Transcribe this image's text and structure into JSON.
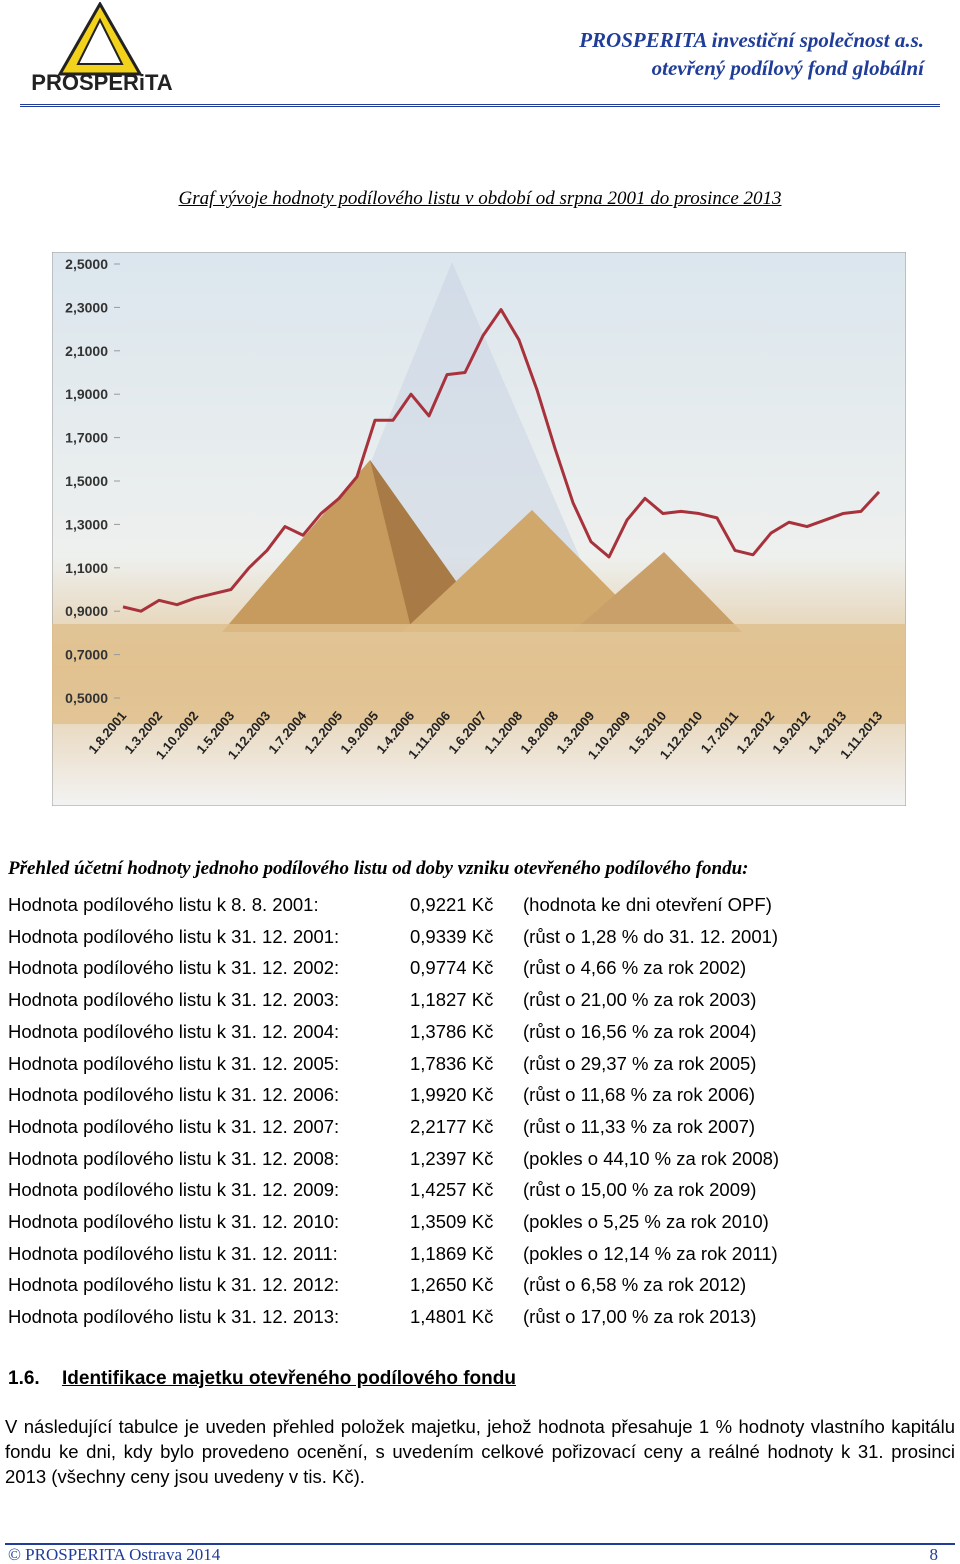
{
  "header": {
    "logo": "PROSPERiTA",
    "company": "PROSPERITA investiční společnost a.s.",
    "fund": "otevřený podílový fond globální"
  },
  "chart_caption": "Graf vývoje hodnoty podílového listu v období od srpna 2001 do prosince 2013",
  "chart_data": {
    "type": "line",
    "categories": [
      "1.8.2001",
      null,
      "1.3.2002",
      null,
      "1.10.2002",
      null,
      "1.5.2003",
      null,
      "1.12.2003",
      null,
      "1.7.2004",
      null,
      "1.2.2005",
      null,
      "1.9.2005",
      null,
      "1.4.2006",
      null,
      "1.11.2006",
      null,
      "1.6.2007",
      null,
      "1.1.2008",
      null,
      "1.8.2008",
      null,
      "1.3.2009",
      null,
      "1.10.2009",
      null,
      "1.5.2010",
      null,
      "1.12.2010",
      null,
      "1.7.2011",
      null,
      "1.2.2012",
      null,
      "1.9.2012",
      null,
      "1.4.2013",
      null,
      "1.11.2013"
    ],
    "series": [
      {
        "color": "#a8323c",
        "values": [
          0.92,
          0.9,
          0.95,
          0.93,
          0.96,
          0.98,
          1.0,
          1.1,
          1.18,
          1.29,
          1.25,
          1.35,
          1.42,
          1.52,
          1.78,
          1.78,
          1.9,
          1.8,
          1.99,
          2.0,
          2.17,
          2.29,
          2.15,
          1.92,
          1.65,
          1.4,
          1.22,
          1.15,
          1.32,
          1.42,
          1.35,
          1.36,
          1.35,
          1.33,
          1.18,
          1.16,
          1.26,
          1.31,
          1.29,
          1.32,
          1.35,
          1.36,
          1.45
        ]
      }
    ],
    "ylim": [
      0.5,
      2.5
    ],
    "yticks": [
      {
        "value": 0.5,
        "label": "0,5000"
      },
      {
        "value": 0.7,
        "label": "0,7000"
      },
      {
        "value": 0.9,
        "label": "0,9000"
      },
      {
        "value": 1.1,
        "label": "1,1000"
      },
      {
        "value": 1.3,
        "label": "1,3000"
      },
      {
        "value": 1.5,
        "label": "1,5000"
      },
      {
        "value": 1.7,
        "label": "1,7000"
      },
      {
        "value": 1.9,
        "label": "1,9000"
      },
      {
        "value": 2.1,
        "label": "2,1000"
      },
      {
        "value": 2.3,
        "label": "2,3000"
      },
      {
        "value": 2.5,
        "label": "2,5000"
      }
    ]
  },
  "summary": {
    "title": "Přehled účetní hodnoty jednoho podílového listu od doby vzniku otevřeného podílového fondu:",
    "rows": [
      [
        "Hodnota podílového listu k 8. 8. 2001:",
        "0,9221 Kč",
        "(hodnota ke dni otevření OPF)"
      ],
      [
        "Hodnota podílového listu k 31. 12. 2001:",
        "0,9339 Kč",
        "(růst o 1,28 % do 31. 12. 2001)"
      ],
      [
        "Hodnota podílového listu k 31. 12. 2002:",
        "0,9774 Kč",
        "(růst o 4,66 % za rok 2002)"
      ],
      [
        "Hodnota podílového listu k 31. 12. 2003:",
        "1,1827 Kč",
        "(růst o 21,00 % za rok 2003)"
      ],
      [
        "Hodnota podílového listu k 31. 12. 2004:",
        "1,3786 Kč",
        "(růst o 16,56 % za rok 2004)"
      ],
      [
        "Hodnota podílového listu k 31. 12. 2005:",
        "1,7836 Kč",
        "(růst o 29,37 % za rok 2005)"
      ],
      [
        "Hodnota podílového listu k 31. 12. 2006:",
        "1,9920 Kč",
        "(růst o 11,68 % za rok 2006)"
      ],
      [
        "Hodnota podílového listu k 31. 12. 2007:",
        "2,2177 Kč",
        "(růst o 11,33 % za rok 2007)"
      ],
      [
        "Hodnota podílového listu k 31. 12. 2008:",
        "1,2397 Kč",
        "(pokles o 44,10 % za rok 2008)"
      ],
      [
        "Hodnota podílového listu k 31. 12. 2009:",
        "1,4257 Kč",
        "(růst o 15,00 % za rok 2009)"
      ],
      [
        "Hodnota podílového listu k 31. 12. 2010:",
        "1,3509 Kč",
        "(pokles o 5,25 % za rok 2010)"
      ],
      [
        "Hodnota podílového listu k 31. 12. 2011:",
        "1,1869 Kč",
        "(pokles o 12,14 % za rok 2011)"
      ],
      [
        "Hodnota podílového listu k 31. 12. 2012:",
        "1,2650 Kč",
        "(růst o 6,58 % za rok 2012)"
      ],
      [
        "Hodnota podílového listu k 31. 12. 2013:",
        "1,4801 Kč",
        "(růst o 17,00 % za rok 2013)"
      ]
    ]
  },
  "section": {
    "number": "1.6.",
    "title": "Identifikace majetku otevřeného podílového fondu",
    "text": "V následující tabulce je uveden přehled položek majetku, jehož hodnota přesahuje 1 % hodnoty vlastního kapitálu fondu ke dni, kdy bylo provedeno ocenění, s uvedením celkové pořizovací ceny a reálné hodnoty k 31. prosinci 2013 (všechny ceny jsou uvedeny v tis. Kč)."
  },
  "footer": {
    "left": "© PROSPERITA Ostrava 2014",
    "page": "8"
  }
}
